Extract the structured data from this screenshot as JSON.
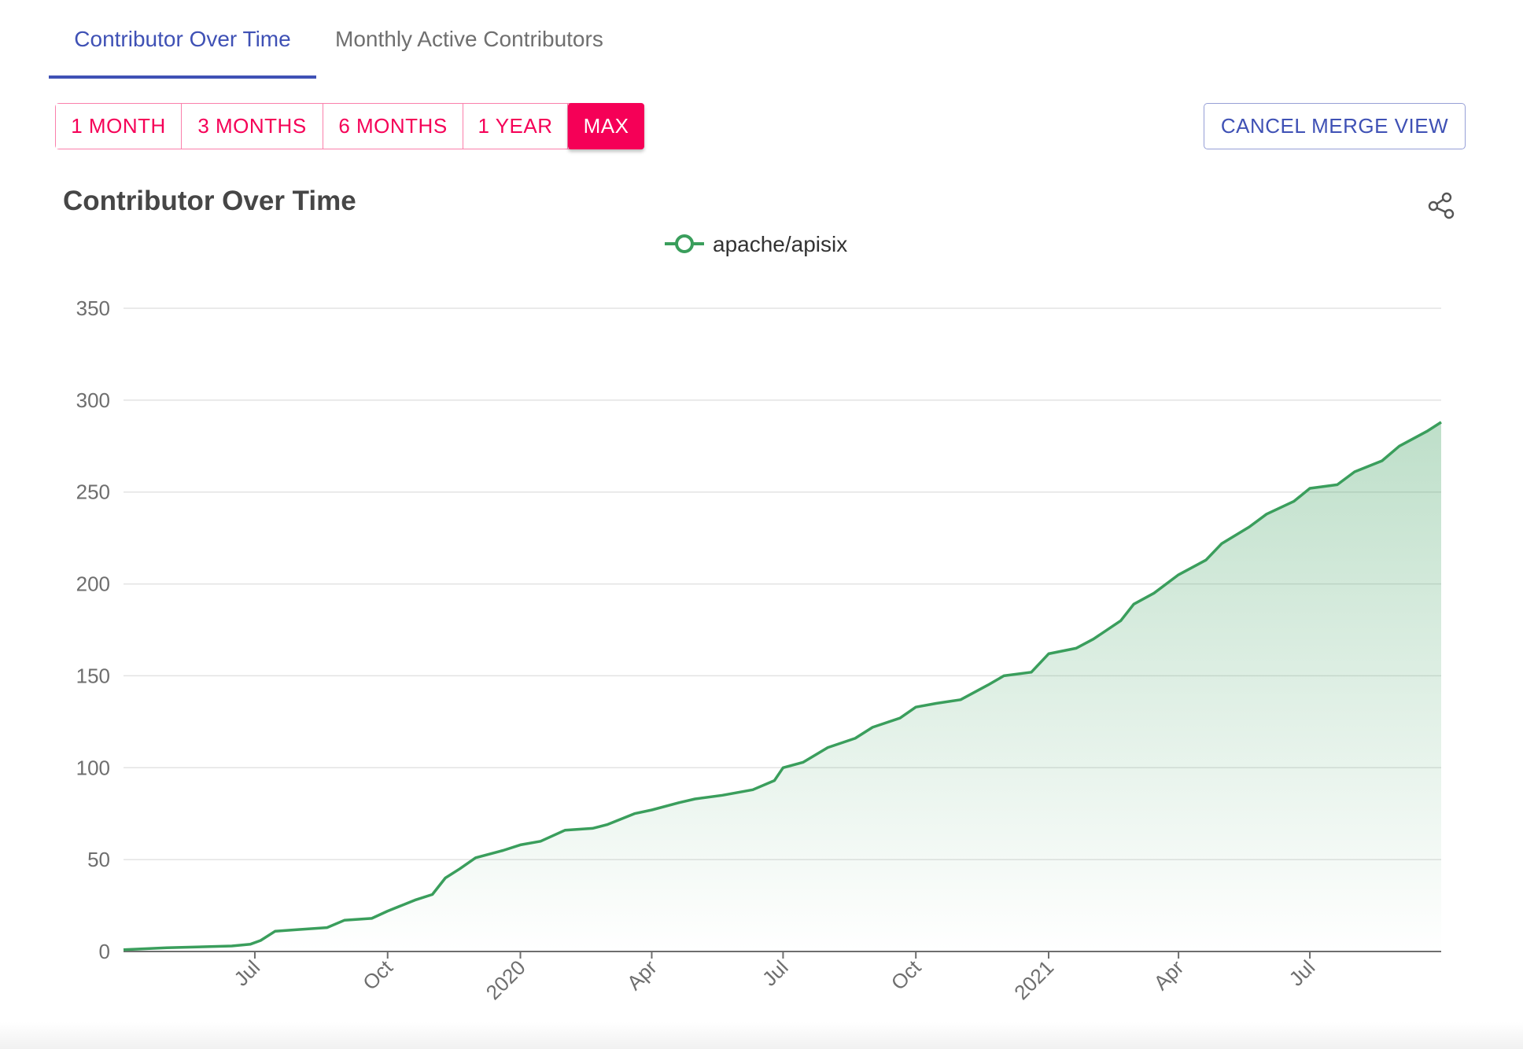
{
  "tabs": [
    {
      "label": "Contributor Over Time",
      "active": true
    },
    {
      "label": "Monthly Active Contributors",
      "active": false
    }
  ],
  "ranges": [
    {
      "label": "1 MONTH",
      "active": false
    },
    {
      "label": "3 MONTHS",
      "active": false
    },
    {
      "label": "6 MONTHS",
      "active": false
    },
    {
      "label": "1 YEAR",
      "active": false
    },
    {
      "label": "MAX",
      "active": true
    }
  ],
  "cancel_label": "CANCEL MERGE VIEW",
  "icons": {
    "share": "share-icon"
  },
  "colors": {
    "line": "#3a9e5c",
    "tab_accent": "#3f51b5",
    "range_accent": "#f50057"
  },
  "chart_data": {
    "type": "area",
    "title": "Contributor Over Time",
    "legend_position": "top-center",
    "grid": true,
    "xlabel": "",
    "ylabel": "",
    "ylim": [
      0,
      350
    ],
    "yticks": [
      0,
      50,
      100,
      150,
      200,
      250,
      300,
      350
    ],
    "xlim": [
      "2019-04-01",
      "2021-09-30"
    ],
    "xticks": [
      {
        "label": "Jul",
        "date": "2019-07-01"
      },
      {
        "label": "Oct",
        "date": "2019-10-01"
      },
      {
        "label": "2020",
        "date": "2020-01-01"
      },
      {
        "label": "Apr",
        "date": "2020-04-01"
      },
      {
        "label": "Jul",
        "date": "2020-07-01"
      },
      {
        "label": "Oct",
        "date": "2020-10-01"
      },
      {
        "label": "2021",
        "date": "2021-01-01"
      },
      {
        "label": "Apr",
        "date": "2021-04-01"
      },
      {
        "label": "Jul",
        "date": "2021-07-01"
      }
    ],
    "series": [
      {
        "name": "apache/apisix",
        "x": [
          "2019-04-01",
          "2019-05-01",
          "2019-06-15",
          "2019-06-28",
          "2019-07-05",
          "2019-07-15",
          "2019-08-01",
          "2019-08-20",
          "2019-09-01",
          "2019-09-20",
          "2019-10-01",
          "2019-10-20",
          "2019-11-01",
          "2019-11-10",
          "2019-11-20",
          "2019-12-01",
          "2019-12-20",
          "2020-01-01",
          "2020-01-15",
          "2020-02-01",
          "2020-02-20",
          "2020-03-01",
          "2020-03-20",
          "2020-04-01",
          "2020-04-20",
          "2020-05-01",
          "2020-05-20",
          "2020-06-10",
          "2020-06-25",
          "2020-07-01",
          "2020-07-15",
          "2020-08-01",
          "2020-08-20",
          "2020-09-01",
          "2020-09-20",
          "2020-10-01",
          "2020-10-15",
          "2020-11-01",
          "2020-11-20",
          "2020-12-01",
          "2020-12-20",
          "2021-01-01",
          "2021-01-20",
          "2021-02-01",
          "2021-02-20",
          "2021-03-01",
          "2021-03-15",
          "2021-04-01",
          "2021-04-20",
          "2021-05-01",
          "2021-05-20",
          "2021-06-01",
          "2021-06-20",
          "2021-07-01",
          "2021-07-20",
          "2021-08-01",
          "2021-08-20",
          "2021-09-01",
          "2021-09-20",
          "2021-09-30"
        ],
        "values": [
          1,
          2,
          3,
          4,
          6,
          11,
          12,
          13,
          17,
          18,
          22,
          28,
          31,
          40,
          45,
          51,
          55,
          58,
          60,
          66,
          67,
          69,
          75,
          77,
          81,
          83,
          85,
          88,
          93,
          100,
          103,
          111,
          116,
          122,
          127,
          133,
          135,
          137,
          145,
          150,
          152,
          162,
          165,
          170,
          180,
          189,
          195,
          205,
          213,
          222,
          231,
          238,
          245,
          252,
          254,
          261,
          267,
          275,
          283,
          288
        ]
      }
    ]
  }
}
